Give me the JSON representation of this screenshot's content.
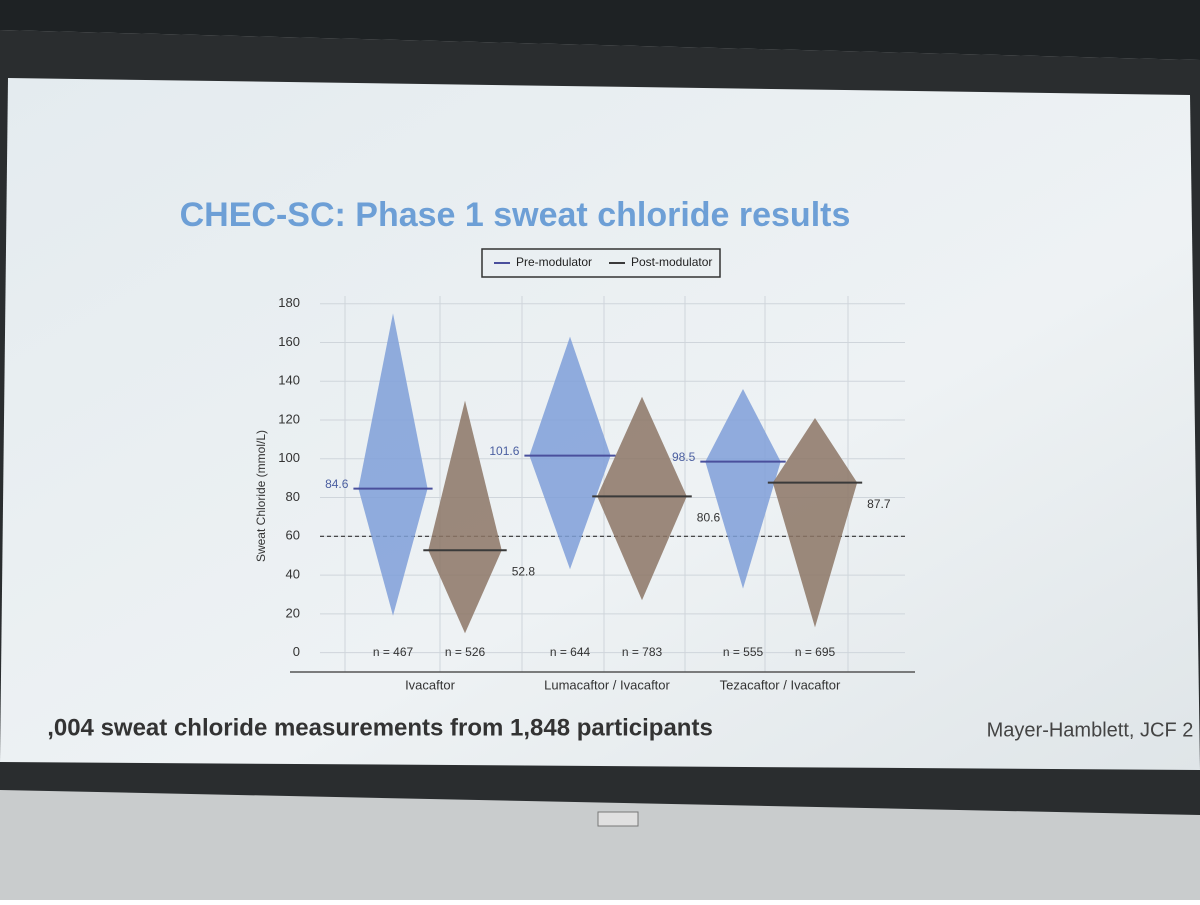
{
  "chart_data": {
    "type": "swarm",
    "title": "CHEC-SC:  Phase 1 sweat chloride results",
    "y_label": "Sweat Chloride (mmol/L)",
    "categories": [
      "Ivacaftor",
      "Lumacaftor / Ivacaftor",
      "Tezacaftor / Ivacaftor"
    ],
    "series": [
      {
        "name": "Pre-modulator",
        "color": "#7f9fd8",
        "line_color": "#4a4f9c",
        "values": [
          84.6,
          101.6,
          98.5
        ],
        "n": [
          467,
          644,
          555
        ],
        "n_labels": [
          "n = 467",
          "n = 644",
          "n = 555"
        ],
        "ranges": [
          [
            19,
            175
          ],
          [
            43,
            163
          ],
          [
            33,
            136
          ]
        ]
      },
      {
        "name": "Post-modulator",
        "color": "#8c7565",
        "line_color": "#3a3a3a",
        "values": [
          52.8,
          80.6,
          87.7
        ],
        "n": [
          526,
          783,
          695
        ],
        "n_labels": [
          "n = 526",
          "n = 783",
          "n = 695"
        ],
        "ranges": [
          [
            10,
            130
          ],
          [
            27,
            132
          ],
          [
            13,
            121
          ]
        ]
      }
    ],
    "reference_line": 60,
    "ylim": [
      -10,
      185
    ],
    "yticks": [
      0,
      20,
      40,
      60,
      80,
      100,
      120,
      140,
      160,
      180
    ],
    "grid": true,
    "legend": "top",
    "footer": ",004 sweat chloride measurements from 1,848 participants",
    "citation": "Mayer-Hamblett, JCF 2"
  }
}
